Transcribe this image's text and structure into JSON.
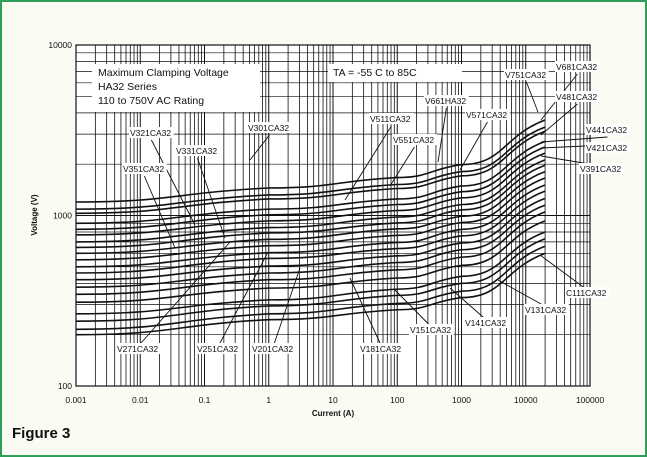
{
  "figure_label": "Figure 3",
  "chart_data": {
    "type": "line",
    "xlabel": "Current (A)",
    "ylabel": "Voltage (V)",
    "xscale": "log",
    "yscale": "log",
    "xlim": [
      0.001,
      100000
    ],
    "ylim": [
      100,
      10000
    ],
    "grid": true,
    "x_ticks": [
      "0.001",
      "0.01",
      "0.1",
      "1",
      "10",
      "100",
      "1000",
      "10000",
      "100000"
    ],
    "y_ticks": [
      "10000",
      "1000",
      "100"
    ],
    "annotations": {
      "title_lines": [
        "Maximum Clamping Voltage",
        "HA32  Series",
        "110 to 750V AC Rating"
      ],
      "temperature": "TA = -55 C to 85C"
    },
    "series": [
      {
        "name": "V131CA32",
        "x": [
          0.001,
          1,
          100,
          1000,
          20000
        ],
        "y": [
          200,
          245,
          280,
          330,
          600
        ]
      },
      {
        "name": "V151CA32",
        "x": [
          0.001,
          1,
          100,
          1000,
          20000
        ],
        "y": [
          215,
          265,
          305,
          360,
          660
        ]
      },
      {
        "name": "V181CA32",
        "x": [
          0.001,
          1,
          100,
          1000,
          20000
        ],
        "y": [
          240,
          295,
          340,
          400,
          730
        ]
      },
      {
        "name": "V201CA32",
        "x": [
          0.001,
          1,
          100,
          1000,
          20000
        ],
        "y": [
          265,
          320,
          370,
          440,
          800
        ]
      },
      {
        "name": "V251CA32",
        "x": [
          0.001,
          1,
          100,
          1000,
          20000
        ],
        "y": [
          310,
          375,
          430,
          510,
          930
        ]
      },
      {
        "name": "V271CA32",
        "x": [
          0.001,
          1,
          100,
          1000,
          20000
        ],
        "y": [
          345,
          420,
          480,
          570,
          1050
        ]
      },
      {
        "name": "V301CA32",
        "x": [
          0.001,
          1,
          100,
          1000,
          20000
        ],
        "y": [
          380,
          460,
          530,
          630,
          1150
        ]
      },
      {
        "name": "V321CA32",
        "x": [
          0.001,
          1,
          100,
          1000,
          20000
        ],
        "y": [
          420,
          505,
          580,
          690,
          1260
        ]
      },
      {
        "name": "V331CA32",
        "x": [
          0.001,
          1,
          100,
          1000,
          20000
        ],
        "y": [
          460,
          560,
          640,
          760,
          1390
        ]
      },
      {
        "name": "V351CA32",
        "x": [
          0.001,
          1,
          100,
          1000,
          20000
        ],
        "y": [
          500,
          605,
          695,
          830,
          1510
        ]
      },
      {
        "name": "V391CA32",
        "x": [
          0.001,
          1,
          100,
          1000,
          20000
        ],
        "y": [
          550,
          665,
          765,
          910,
          1660
        ]
      },
      {
        "name": "V421CA32",
        "x": [
          0.001,
          1,
          100,
          1000,
          20000
        ],
        "y": [
          600,
          725,
          835,
          990,
          1810
        ]
      },
      {
        "name": "V441CA32",
        "x": [
          0.001,
          1,
          100,
          1000,
          20000
        ],
        "y": [
          650,
          790,
          905,
          1080,
          1970
        ]
      },
      {
        "name": "V481CA32",
        "x": [
          0.001,
          1,
          100,
          1000,
          20000
        ],
        "y": [
          700,
          850,
          980,
          1160,
          2120
        ]
      },
      {
        "name": "V511CA32",
        "x": [
          0.001,
          1,
          100,
          1000,
          20000
        ],
        "y": [
          770,
          930,
          1070,
          1270,
          2320
        ]
      },
      {
        "name": "V551CA32",
        "x": [
          0.001,
          1,
          100,
          1000,
          20000
        ],
        "y": [
          830,
          1010,
          1160,
          1380,
          2520
        ]
      },
      {
        "name": "V571CA32",
        "x": [
          0.001,
          1,
          100,
          1000,
          20000
        ],
        "y": [
          900,
          1090,
          1250,
          1490,
          2720
        ]
      },
      {
        "name": "V661HA32",
        "x": [
          0.001,
          1,
          100,
          1000,
          20000
        ],
        "y": [
          1030,
          1250,
          1440,
          1710,
          3120
        ]
      },
      {
        "name": "V681CA32",
        "x": [
          0.001,
          1,
          100,
          1000,
          20000
        ],
        "y": [
          1090,
          1320,
          1520,
          1810,
          3300
        ]
      },
      {
        "name": "V751CA32",
        "x": [
          0.001,
          1,
          100,
          1000,
          20000
        ],
        "y": [
          1200,
          1450,
          1670,
          1990,
          3630
        ]
      }
    ]
  },
  "colors": {
    "frame": "#2e9e5b",
    "background": "#fbfbf3",
    "lines": "#111111"
  }
}
